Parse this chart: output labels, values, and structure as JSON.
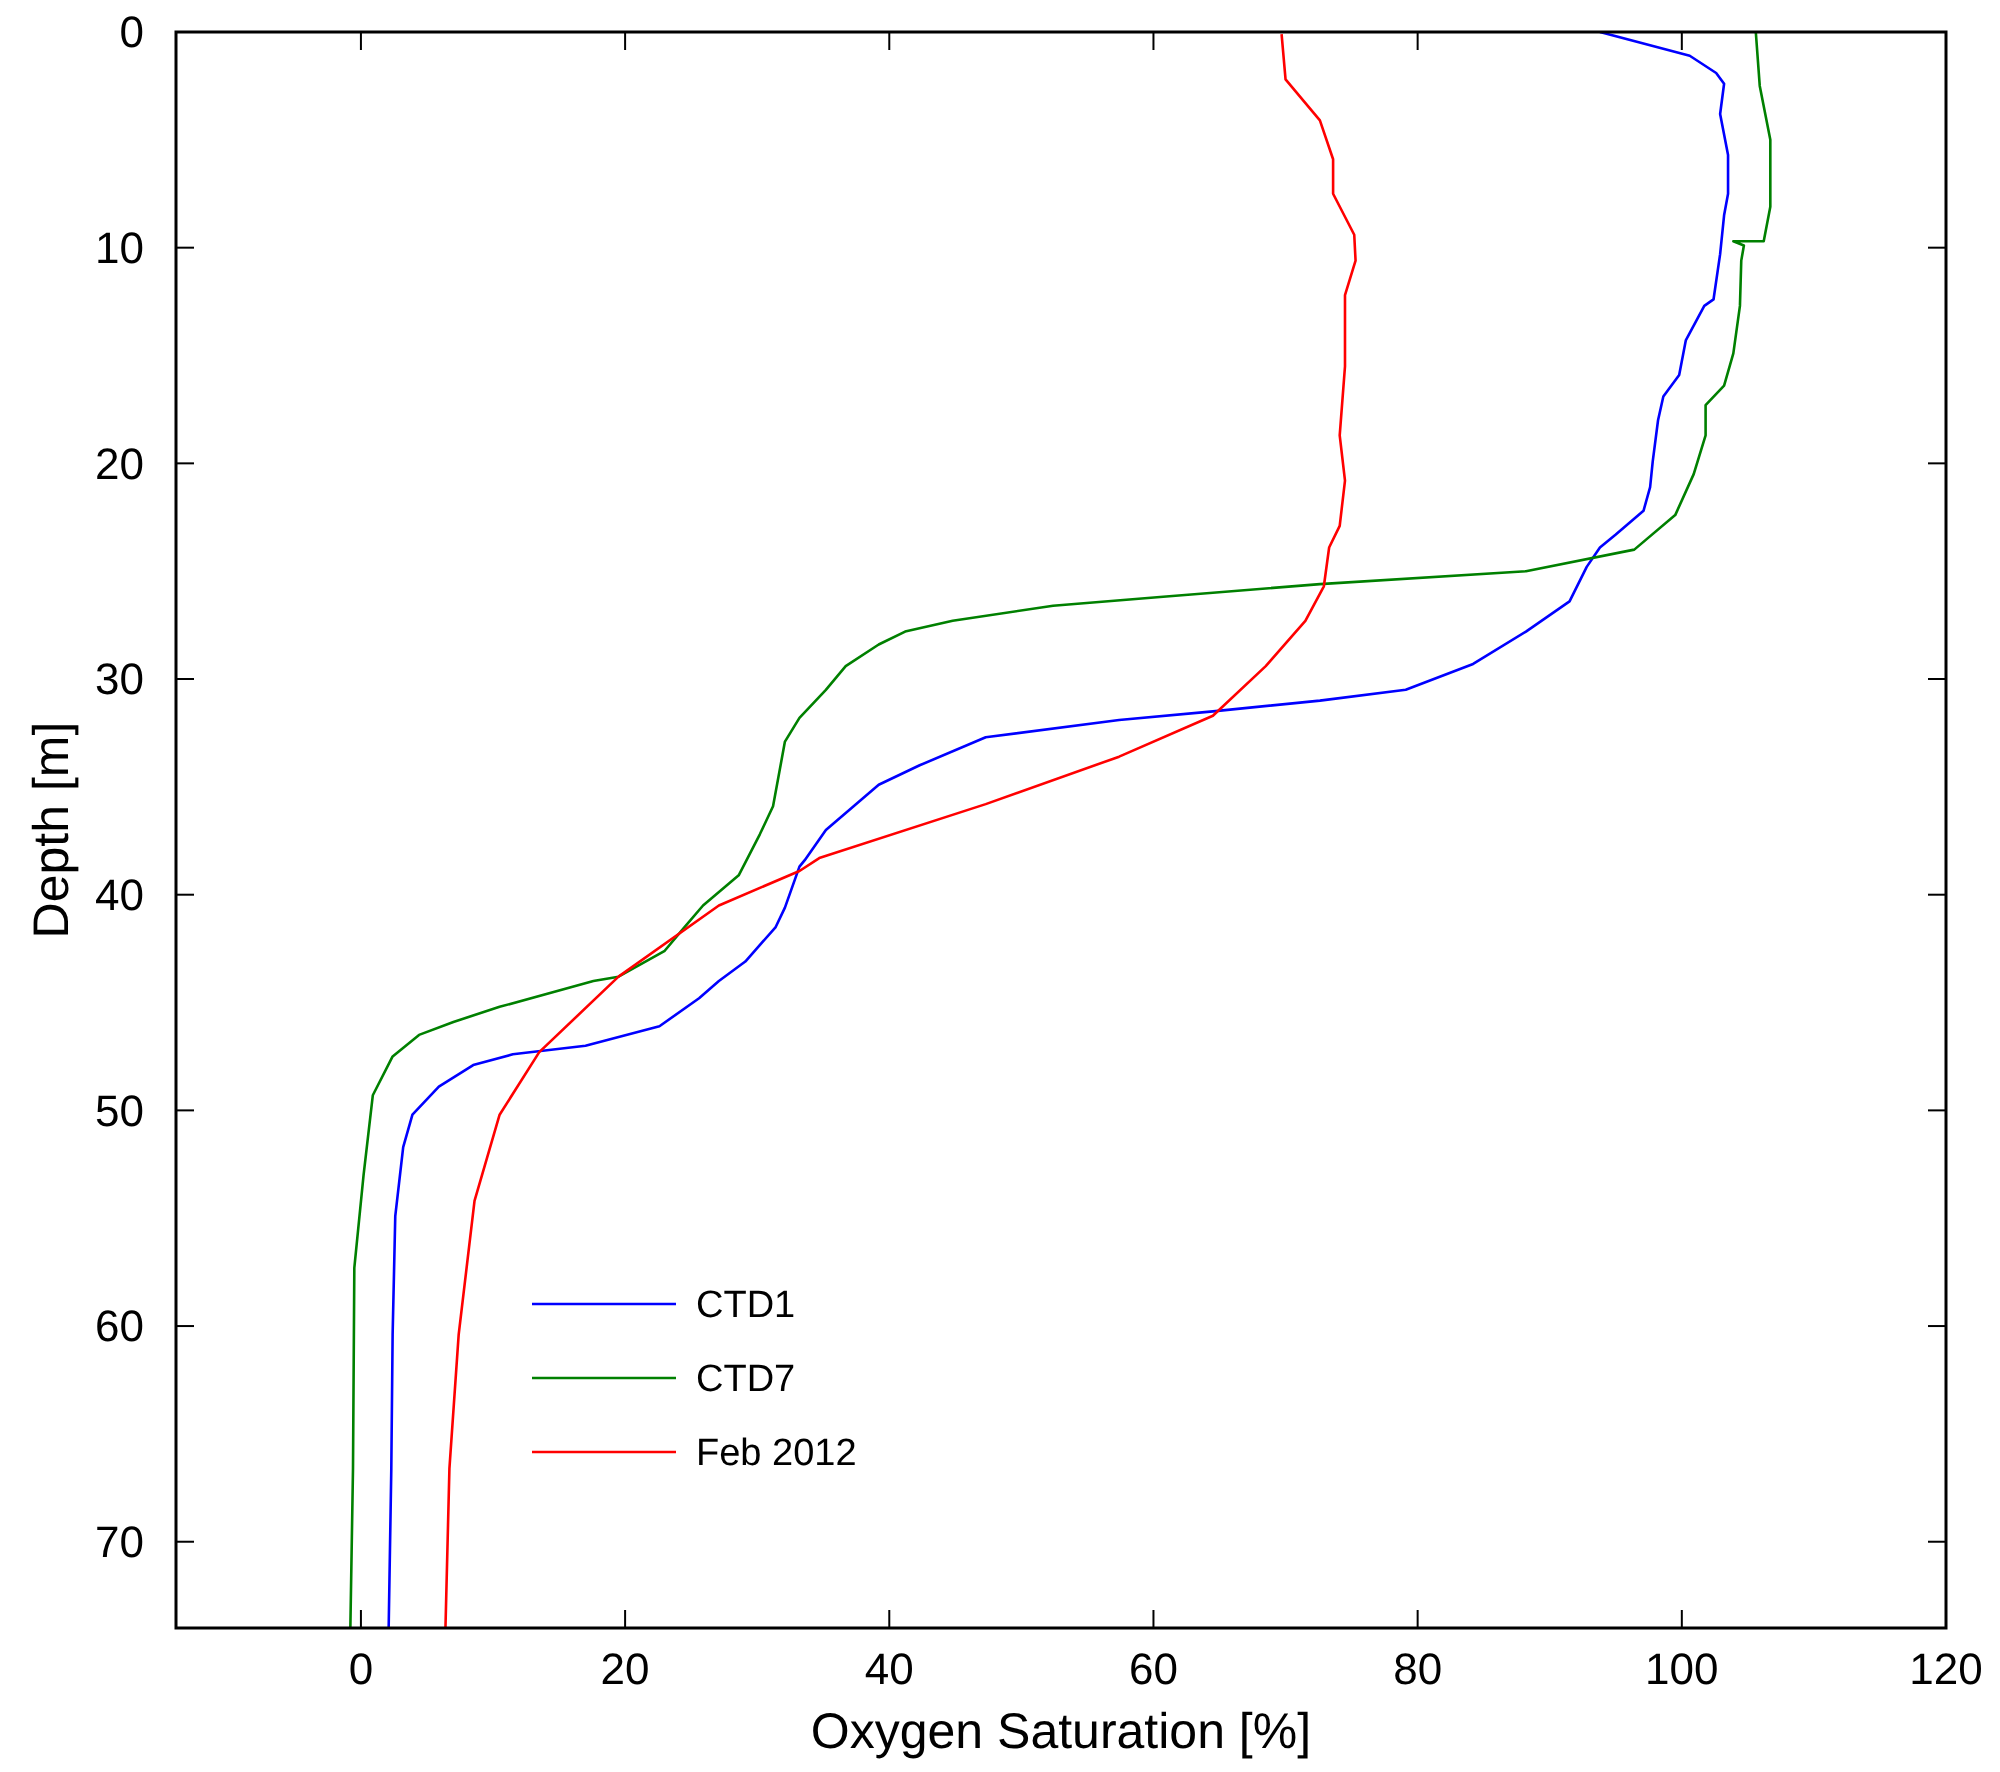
{
  "chart_data": {
    "type": "line",
    "xlabel": "Oxygen Saturation [%]",
    "ylabel": "Depth [m]",
    "xlim": [
      -14,
      120
    ],
    "ylim": [
      74,
      0
    ],
    "xticks": [
      0,
      20,
      40,
      60,
      80,
      100,
      120
    ],
    "yticks": [
      0,
      10,
      20,
      30,
      40,
      50,
      60,
      70
    ],
    "grid": false,
    "legend": "bottom left",
    "marker": "none",
    "line_style": "solid",
    "series": [
      {
        "name": "CTD1",
        "color": "#0000ff",
        "x": [
          93.8,
          100.6,
          102.6,
          103.2,
          102.9,
          103.5,
          103.5,
          103.2,
          102.9,
          102.4,
          101.7,
          100.3,
          99.8,
          98.6,
          98.2,
          97.8,
          97.6,
          97.1,
          95.0,
          93.8,
          92.8,
          91.5,
          88.2,
          84.2,
          79.1,
          72.6,
          64.5,
          57.4,
          47.3,
          42.3,
          39.2,
          37.3,
          35.2,
          33.6,
          33.2,
          32.1,
          31.4,
          29.1,
          27.1,
          25.6,
          22.6,
          17.0,
          11.5,
          8.5,
          5.9,
          3.9,
          3.2,
          2.6,
          2.4,
          2.3,
          2.1
        ],
        "values": [
          0,
          1.1,
          1.9,
          2.4,
          3.8,
          5.7,
          7.5,
          8.5,
          10.3,
          12.4,
          12.7,
          14.3,
          15.9,
          16.9,
          18.0,
          19.9,
          21.1,
          22.2,
          23.3,
          23.9,
          24.8,
          26.4,
          27.8,
          29.3,
          30.5,
          31.0,
          31.5,
          31.9,
          32.7,
          34.0,
          34.9,
          35.9,
          37.0,
          38.4,
          38.7,
          40.6,
          41.5,
          43.1,
          44.0,
          44.8,
          46.1,
          47.0,
          47.4,
          47.9,
          48.9,
          50.2,
          51.7,
          54.9,
          60.4,
          66.6,
          74.0
        ]
      },
      {
        "name": "CTD7",
        "color": "#008000",
        "x": [
          105.6,
          105.9,
          106.7,
          106.7,
          106.2,
          103.9,
          104.7,
          104.5,
          104.4,
          103.9,
          103.2,
          101.8,
          101.8,
          100.9,
          99.5,
          96.4,
          88.2,
          72.6,
          60.5,
          52.4,
          44.8,
          41.2,
          39.2,
          36.7,
          35.2,
          33.2,
          32.1,
          31.2,
          30.2,
          28.6,
          25.9,
          24.5,
          23.0,
          19.5,
          17.6,
          10.5,
          7.0,
          4.4,
          2.4,
          0.9,
          0.2,
          -0.5,
          -0.6,
          -0.8
        ],
        "values": [
          0,
          2.5,
          5.0,
          8.1,
          9.7,
          9.7,
          9.9,
          10.6,
          12.7,
          14.9,
          16.4,
          17.3,
          18.7,
          20.5,
          22.4,
          24.0,
          25.0,
          25.6,
          26.2,
          26.6,
          27.3,
          27.8,
          28.4,
          29.4,
          30.5,
          31.8,
          32.9,
          35.9,
          37.2,
          39.1,
          40.5,
          41.5,
          42.6,
          43.8,
          44.0,
          45.2,
          45.9,
          46.5,
          47.5,
          49.3,
          53.0,
          57.3,
          66.6,
          74.0
        ]
      },
      {
        "name": "Feb 2012",
        "color": "#ff0000",
        "x": [
          69.7,
          70.0,
          72.6,
          73.6,
          73.6,
          75.2,
          75.3,
          74.5,
          74.5,
          74.1,
          74.5,
          74.1,
          73.3,
          72.9,
          71.5,
          68.5,
          64.5,
          57.4,
          47.3,
          34.7,
          33.2,
          27.1,
          19.5,
          13.5,
          10.5,
          8.6,
          7.4,
          6.7,
          6.4
        ],
        "values": [
          0.1,
          2.2,
          4.1,
          5.9,
          7.5,
          9.4,
          10.6,
          12.2,
          15.5,
          18.7,
          20.8,
          22.9,
          23.9,
          25.7,
          27.3,
          29.4,
          31.7,
          33.6,
          35.8,
          38.3,
          38.9,
          40.5,
          43.8,
          47.3,
          50.2,
          54.2,
          60.4,
          66.6,
          74.0
        ]
      }
    ]
  }
}
